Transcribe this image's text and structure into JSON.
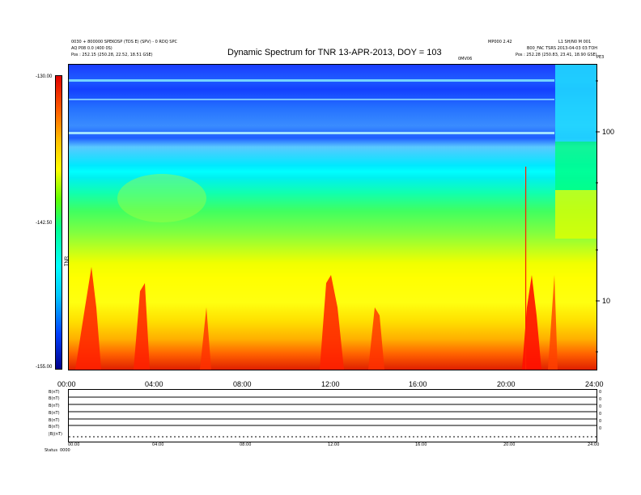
{
  "header": {
    "left_line1": "0030 + 800000 SPEKOSP (TDS E) (SPV) - 0 RDQ SPC",
    "left_line2": "AQ P08 0.0 (400 0S)",
    "left_line3": "Pos : 252.15 (250.28, 22.52, 18.51 GSE)",
    "right_line1": "L1 SH/N0 M 001",
    "right_line2": "B00_FAC TSRS 2013-04-03 03:TOH",
    "right_line3": "Pos : 252.28 (250.83, 23.41, 18.90 GSE)",
    "center_small": "MP000 2.42",
    "sub_small": "0MV06",
    "corner_small": "PE3"
  },
  "chart_data": {
    "type": "heatmap",
    "title": "Dynamic Spectrum for TNR 13-APR-2013, DOY = 103",
    "x_ticks": [
      "00:00",
      "04:00",
      "08:00",
      "12:00",
      "16:00",
      "20:00",
      "24:00"
    ],
    "x_range_hours": [
      0,
      24
    ],
    "y_scale": "log",
    "y_ticks_right": [
      "100",
      "10"
    ],
    "colorbar_ticks": [
      "-130.00",
      "-142.50",
      "-155.00"
    ],
    "colorbar_range": [
      -155,
      -130
    ],
    "colorbar_label": "TNR",
    "colorscale": [
      "#b40000",
      "#ff2000",
      "#ff8000",
      "#ffff00",
      "#00d060",
      "#00ffff",
      "#0060ff",
      "#00008c"
    ],
    "notes_bursts_hours": [
      0.9,
      3.3,
      6.3,
      11.8,
      14.1,
      20.8,
      21.5
    ]
  },
  "subpanels": {
    "labels": [
      "B(nT)",
      "B(nT)",
      "B(nT)",
      "B(nT)",
      "B(nT)",
      "B(nT)",
      "|B|(nT)",
      "Status"
    ],
    "right_ticks": [
      "0",
      "0",
      "0",
      "0",
      "0",
      "0"
    ],
    "x_ticks": [
      "00:00",
      "04:00",
      "08:00",
      "12:00",
      "16:00",
      "20:00",
      "24:00"
    ],
    "footer_left": "Status",
    "footer_extra": "0000"
  },
  "colors": {
    "frame": "#000000",
    "trace": "#000000"
  }
}
